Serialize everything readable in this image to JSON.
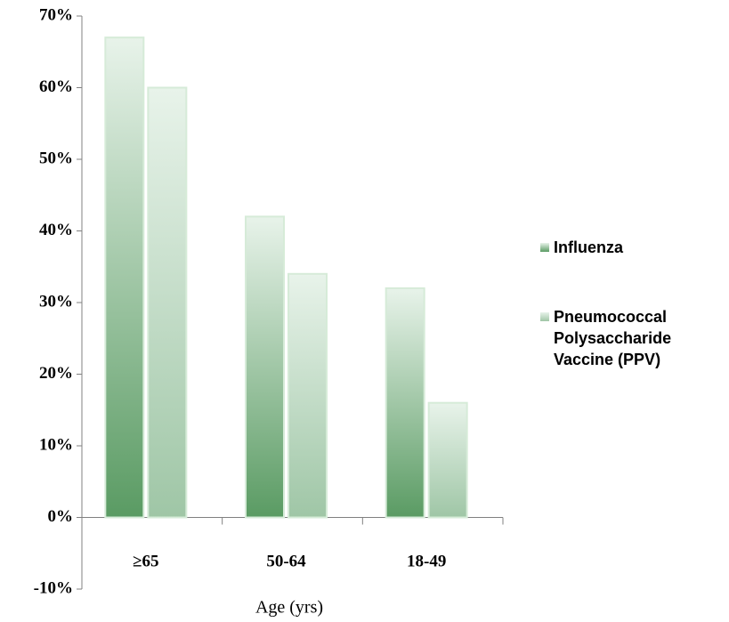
{
  "chart_data": {
    "type": "bar",
    "x_label": "Age (yrs)",
    "categories": [
      "≥65",
      "50-64",
      "18-49"
    ],
    "series": [
      {
        "name": "Influenza",
        "color": "#5a9b63",
        "values": [
          67,
          42,
          32
        ]
      },
      {
        "name": "Pneumococcal Polysaccharide Vaccine (PPV)",
        "color": "#9fc6a6",
        "values": [
          60,
          34,
          16
        ]
      }
    ],
    "ylim": [
      -10,
      70
    ],
    "yticks": [
      {
        "value": -10,
        "label": "-10%"
      },
      {
        "value": 0,
        "label": "0%"
      },
      {
        "value": 10,
        "label": "10%"
      },
      {
        "value": 20,
        "label": "20%"
      },
      {
        "value": 30,
        "label": "30%"
      },
      {
        "value": 40,
        "label": "40%"
      },
      {
        "value": 50,
        "label": "50%"
      },
      {
        "value": 60,
        "label": "60%"
      },
      {
        "value": 70,
        "label": "70%"
      }
    ],
    "legend": "right",
    "grid": false
  }
}
